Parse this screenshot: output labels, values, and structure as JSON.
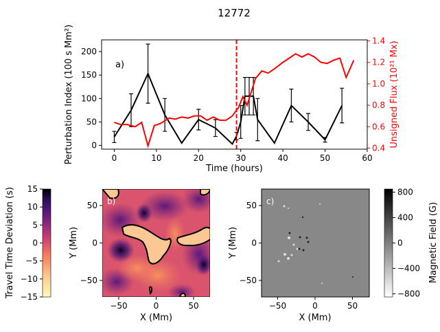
{
  "chart_data": [
    {
      "type": "line",
      "title": "12772",
      "panel_label": "a)",
      "xlabel": "Time (hours)",
      "ylabel": "Perturbation Index (100 s Mm²)",
      "y2label": "Unsigned Flux (10²¹ Mx)",
      "xlim": [
        -3,
        60
      ],
      "ylim": [
        -8,
        225
      ],
      "y2lim": [
        0.39,
        1.41
      ],
      "xticks": [
        0,
        10,
        20,
        30,
        40,
        50,
        60
      ],
      "yticks": [
        0,
        50,
        100,
        150,
        200
      ],
      "y2ticks": [
        0.4,
        0.6,
        0.8,
        1.0,
        1.2,
        1.4
      ],
      "vline": {
        "x": 29,
        "color": "#ff0000",
        "style": "dashed"
      },
      "series": [
        {
          "name": "Perturbation Index",
          "color": "#000000",
          "axis": "left",
          "x": [
            0,
            4,
            8,
            12,
            16,
            20,
            24,
            28,
            29,
            30,
            31,
            32,
            33,
            34,
            38,
            42,
            46,
            50,
            54
          ],
          "y": [
            18,
            75,
            153,
            65,
            5,
            55,
            37,
            3,
            20,
            50,
            105,
            105,
            105,
            55,
            5,
            85,
            50,
            12,
            85
          ],
          "err": [
            12,
            35,
            63,
            35,
            0,
            22,
            18,
            0,
            8,
            35,
            40,
            40,
            40,
            45,
            0,
            35,
            18,
            5,
            37
          ]
        },
        {
          "name": "Unsigned Flux",
          "color": "#ff0000",
          "axis": "right",
          "x": [
            0,
            1.5,
            3,
            5,
            6.5,
            8,
            9.5,
            11,
            13,
            14.5,
            16,
            17.5,
            19,
            20.5,
            22,
            23.5,
            25,
            26.5,
            28,
            29.5,
            30.5,
            31.5,
            33.5,
            35,
            36.5,
            38,
            40,
            41.5,
            43,
            44.5,
            46,
            47.5,
            49,
            50.5,
            52,
            53.5,
            55,
            56.8
          ],
          "y": [
            0.64,
            0.62,
            0.62,
            0.6,
            0.64,
            0.42,
            0.61,
            0.63,
            0.68,
            0.67,
            0.69,
            0.68,
            0.7,
            0.7,
            0.66,
            0.69,
            0.66,
            0.66,
            0.7,
            0.78,
            0.88,
            0.8,
            1.05,
            1.12,
            1.1,
            1.14,
            1.2,
            1.24,
            1.28,
            1.25,
            1.28,
            1.25,
            1.2,
            1.19,
            1.22,
            1.24,
            1.06,
            1.22
          ]
        }
      ]
    },
    {
      "type": "heatmap",
      "panel_label": "b)",
      "xlabel": "X (Mm)",
      "ylabel": "Y (Mm)",
      "xticks": [
        -50,
        0,
        50
      ],
      "yticks": [
        50,
        0,
        -50
      ],
      "colorbar": {
        "label": "Travel Time Deviation (s)",
        "ticks": [
          15,
          10,
          5,
          0,
          -5,
          -10,
          -15
        ],
        "range": [
          -15,
          15
        ]
      }
    },
    {
      "type": "heatmap",
      "panel_label": "c)",
      "xlabel": "X (Mm)",
      "ylabel": "Y (Mm)",
      "xticks": [
        -50,
        0,
        50
      ],
      "yticks": [
        50,
        0,
        -50
      ],
      "colorbar": {
        "label": "Magnetic Field (G)",
        "ticks": [
          800,
          400,
          0,
          -400,
          -800
        ],
        "range": [
          -850,
          850
        ]
      }
    }
  ]
}
